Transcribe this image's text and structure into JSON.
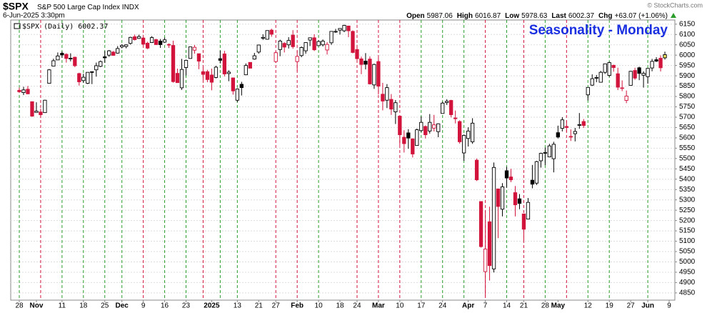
{
  "chart_data": {
    "type": "candlestick",
    "symbol": "$SPX",
    "name": "S&P 500 Large Cap Index",
    "exchange": "INDX",
    "date": "6-Jun-2025 3:30pm",
    "quote": [
      {
        "label": "Open",
        "value": "5987.06"
      },
      {
        "label": "High",
        "value": "6016.87"
      },
      {
        "label": "Low",
        "value": "5978.63"
      },
      {
        "label": "Last",
        "value": "6002.37"
      },
      {
        "label": "Chg",
        "value": "+63.07 (+1.06%)"
      }
    ],
    "source": "© StockCharts.com",
    "legend_label": "$SPX (Daily) 6002.37",
    "annotation": "Seasonality - Monday",
    "up_color": "#000000",
    "down_color": "#d2143c",
    "ylim": [
      4815,
      6170
    ],
    "yticks": [
      4850,
      4900,
      4950,
      5000,
      5050,
      5100,
      5150,
      5200,
      5250,
      5300,
      5350,
      5400,
      5450,
      5500,
      5550,
      5600,
      5650,
      5700,
      5750,
      5800,
      5850,
      5900,
      5950,
      6000,
      6050,
      6100,
      6150
    ],
    "grid": true,
    "categories": [
      "28",
      null,
      null,
      null,
      "Nov",
      null,
      null,
      null,
      null,
      null,
      "11",
      null,
      null,
      null,
      null,
      "18",
      null,
      null,
      null,
      null,
      "25",
      null,
      null,
      null,
      "Dec",
      null,
      null,
      null,
      null,
      "9",
      null,
      null,
      null,
      null,
      "16",
      null,
      null,
      null,
      null,
      "23",
      null,
      null,
      null,
      null,
      null,
      "2025",
      null,
      null,
      null,
      null,
      null,
      "13",
      null,
      null,
      null,
      null,
      "21",
      null,
      null,
      null,
      "27",
      null,
      null,
      null,
      null,
      "Feb",
      null,
      null,
      null,
      null,
      "10",
      null,
      null,
      null,
      null,
      "18",
      null,
      null,
      null,
      "24",
      null,
      null,
      null,
      null,
      "Mar",
      null,
      null,
      null,
      null,
      "10",
      null,
      null,
      null,
      null,
      "17",
      null,
      null,
      null,
      null,
      "24",
      null,
      null,
      null,
      null,
      null,
      "Apr",
      null,
      null,
      null,
      "7",
      null,
      null,
      null,
      null,
      "14",
      null,
      null,
      null,
      "21",
      null,
      null,
      null,
      null,
      "28",
      null,
      null,
      "May",
      null,
      null,
      null,
      null,
      null,
      null,
      "12",
      null,
      null,
      null,
      null,
      "19",
      null,
      null,
      null,
      null,
      "27",
      null,
      null,
      null,
      "Jun",
      null,
      null,
      null,
      null,
      "9"
    ],
    "open": [
      5830,
      5819,
      5835,
      5775,
      5723,
      5725,
      5722,
      5864,
      5947,
      5977,
      6009,
      6004,
      5985,
      5990,
      5911,
      5877,
      5864,
      5920,
      5929,
      5946,
      5992,
      6000,
      6015,
      6010,
      6040,
      6042,
      6057,
      6089,
      6081,
      6083,
      6058,
      6061,
      6075,
      6068,
      6063,
      6052,
      6047,
      5912,
      5842,
      5940,
      5984,
      6024,
      6007,
      5920,
      5920,
      5904,
      5892,
      5983,
      6006,
      5911,
      5890,
      5782,
      5859,
      5905,
      5965,
      5981,
      6015,
      6082,
      6077,
      6121,
      5969,
      6027,
      6057,
      6050,
      6097,
      5969,
      5998,
      6021,
      6073,
      6084,
      6046,
      6050,
      6025,
      6060,
      6115,
      6121,
      6118,
      6141,
      6115,
      6027,
      5982,
      5971,
      5981,
      5856,
      5969,
      5811,
      5782,
      5786,
      5726,
      5705,
      5603,
      5624,
      5595,
      5563,
      5635,
      5655,
      5633,
      5647,
      5630,
      5718,
      5771,
      5781,
      5696,
      5679,
      5527,
      5597,
      5581,
      5492,
      5292,
      4953,
      5194,
      4966,
      5353,
      5255,
      5441,
      5411,
      5335,
      5305,
      5232,
      5207,
      5395,
      5381,
      5489,
      5529,
      5508,
      5499,
      5625,
      5646,
      5655,
      5606,
      5620,
      5663,
      5679,
      5808,
      5855,
      5889,
      5869,
      5917,
      5902,
      5951,
      5910,
      5842,
      5781,
      5854,
      5926,
      5939,
      5903,
      5896,
      5938,
      5978,
      5985,
      5987.06,
      null
    ],
    "high": [
      5843,
      5847,
      5851,
      5776,
      5772,
      5741,
      5784,
      5933,
      5983,
      6013,
      6018,
      6009,
      6009,
      5993,
      5915,
      5910,
      5917,
      5920,
      5964,
      5974,
      6020,
      6025,
      6020,
      6044,
      6053,
      6052,
      6089,
      6099,
      6099,
      6088,
      6065,
      6092,
      6079,
      6078,
      6085,
      6057,
      6070,
      5935,
      5982,
      5978,
      6040,
      6049,
      6007,
      5941,
      5929,
      5935,
      5949,
      6022,
      6021,
      5927,
      5890,
      5839,
      5871,
      5960,
      5965,
      6011,
      6051,
      6101,
      6119,
      6128,
      6018,
      6075,
      6063,
      6087,
      6121,
      6022,
      6042,
      6062,
      6084,
      6101,
      6073,
      6076,
      6063,
      6116,
      6127,
      6129,
      6147,
      6142,
      6120,
      6043,
      5993,
      6010,
      5994,
      5959,
      5987,
      5866,
      5860,
      5812,
      5783,
      5705,
      5637,
      5642,
      5598,
      5645,
      5704,
      5660,
      5715,
      5711,
      5670,
      5775,
      5787,
      5784,
      5732,
      5685,
      5616,
      5651,
      5695,
      5500,
      5293,
      5246,
      5267,
      5481,
      5353,
      5381,
      5460,
      5450,
      5367,
      5328,
      5232,
      5309,
      5469,
      5489,
      5528,
      5553,
      5571,
      5581,
      5659,
      5700,
      5684,
      5641,
      5648,
      5720,
      5691,
      5845,
      5907,
      5904,
      5924,
      5959,
      5969,
      5954,
      5939,
      5878,
      5829,
      5924,
      5939,
      5944,
      5922,
      5937,
      5982,
      5990,
      5999,
      6016.87,
      null
    ],
    "low": [
      5818,
      5807,
      5811,
      5702,
      5723,
      5696,
      5722,
      5864,
      5947,
      5977,
      5987,
      5964,
      5970,
      5942,
      5853,
      5866,
      5860,
      5860,
      5896,
      5942,
      5963,
      5992,
      5997,
      6007,
      6033,
      6033,
      6051,
      6071,
      6079,
      6048,
      6029,
      6059,
      6051,
      6035,
      6059,
      6035,
      5867,
      5866,
      5832,
      5902,
      5983,
      6007,
      5932,
      5879,
      5869,
      5830,
      5888,
      5960,
      5897,
      5874,
      5809,
      5773,
      5805,
      5905,
      5937,
      5978,
      6007,
      6074,
      6075,
      6089,
      5962,
      5995,
      6013,
      6032,
      6031,
      5923,
      5990,
      6007,
      6044,
      6020,
      6044,
      6042,
      6003,
      6050,
      6108,
      6100,
      6111,
      6087,
      6009,
      5977,
      5908,
      5931,
      5858,
      5837,
      5810,
      5733,
      5744,
      5711,
      5667,
      5565,
      5529,
      5547,
      5505,
      5563,
      5628,
      5597,
      5621,
      5631,
      5603,
      5718,
      5759,
      5699,
      5670,
      5572,
      5489,
      5558,
      5571,
      5391,
      5069,
      4835,
      4910,
      4949,
      5115,
      5220,
      5359,
      5386,
      5220,
      5255,
      5101,
      5207,
      5356,
      5372,
      5456,
      5468,
      5506,
      5433,
      5597,
      5631,
      5628,
      5585,
      5583,
      5644,
      5648,
      5781,
      5851,
      5869,
      5868,
      5909,
      5895,
      5920,
      5831,
      5826,
      5768,
      5854,
      5881,
      5879,
      5843,
      5862,
      5922,
      5967,
      5921,
      5978.63,
      null
    ],
    "close": [
      5823,
      5832,
      5813,
      5705,
      5729,
      5712,
      5782,
      5929,
      5973,
      5996,
      6001,
      5984,
      5985,
      5949,
      5871,
      5893,
      5917,
      5917,
      5949,
      5969,
      5987,
      6021,
      5999,
      6032,
      6047,
      6050,
      6086,
      6075,
      6090,
      6053,
      6034,
      6085,
      6051,
      6051,
      6074,
      6050,
      5872,
      5867,
      5931,
      5975,
      6040,
      6038,
      5971,
      5907,
      5882,
      5869,
      5942,
      5975,
      5909,
      5918,
      5827,
      5836,
      5843,
      5950,
      5937,
      5997,
      6049,
      6086,
      6119,
      6101,
      6012,
      6068,
      6039,
      6071,
      6041,
      5994,
      6037,
      6061,
      6084,
      6026,
      6066,
      6068,
      6052,
      6115,
      6115,
      6129,
      6144,
      6118,
      6013,
      5983,
      5955,
      5956,
      5861,
      5955,
      5850,
      5778,
      5843,
      5739,
      5770,
      5615,
      5572,
      5599,
      5522,
      5639,
      5675,
      5615,
      5675,
      5663,
      5668,
      5768,
      5777,
      5712,
      5693,
      5581,
      5612,
      5633,
      5671,
      5397,
      5074,
      5062,
      4982,
      5457,
      5268,
      5363,
      5406,
      5397,
      5276,
      5283,
      5158,
      5288,
      5376,
      5485,
      5525,
      5529,
      5561,
      5569,
      5604,
      5687,
      5650,
      5607,
      5631,
      5664,
      5660,
      5844,
      5886,
      5892,
      5917,
      5958,
      5964,
      5940,
      5845,
      5842,
      5802,
      5922,
      5889,
      5912,
      5912,
      5936,
      5970,
      5971,
      5939,
      6002.37,
      null
    ]
  }
}
